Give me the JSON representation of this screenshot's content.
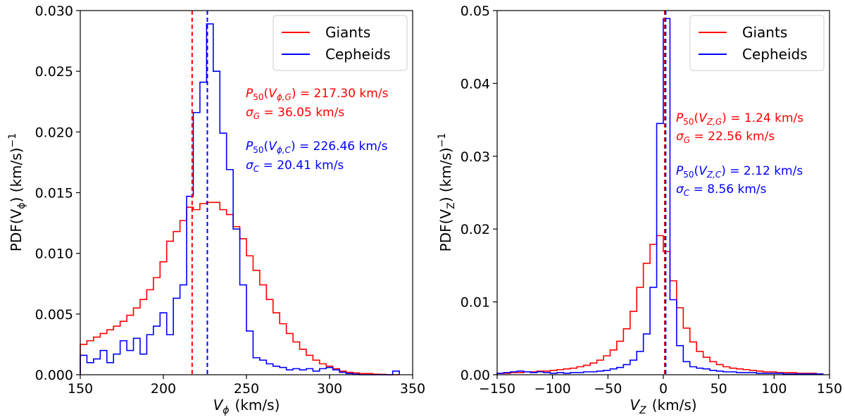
{
  "chart_data": [
    {
      "type": "histogram",
      "xlabel": "V",
      "xlabel_sub": "ϕ",
      "xlabel_unit": "(km/s)",
      "ylabel": "PDF(V",
      "ylabel_sub": "ϕ",
      "ylabel_unit": ")  (km/s)",
      "ylabel_exp": "−1",
      "xlim": [
        150,
        350
      ],
      "ylim": [
        0,
        0.03
      ],
      "xticks": [
        150,
        200,
        250,
        300,
        350
      ],
      "yticks": [
        "0.000",
        "0.005",
        "0.010",
        "0.015",
        "0.020",
        "0.025",
        "0.030"
      ],
      "ytick_values": [
        0,
        0.005,
        0.01,
        0.015,
        0.02,
        0.025,
        0.03
      ],
      "legend": [
        "Giants",
        "Cepheids"
      ],
      "legend_position": "top-right",
      "median_lines": [
        217.3,
        226.46
      ],
      "annotations": {
        "giants_p50": "P₅₀(V_ϕ,G) = 217.30 km/s",
        "giants_sigma": "σ_G = 36.05 km/s",
        "cepheids_p50": "P₅₀(V_ϕ,C) = 226.46 km/s",
        "cepheids_sigma": "σ_C = 20.41 km/s"
      },
      "series": [
        {
          "name": "Giants",
          "color": "#ff0000",
          "edges": [
            150,
            154,
            158,
            162,
            166,
            170,
            174,
            178,
            182,
            186,
            190,
            194,
            198,
            202,
            206,
            210,
            214,
            218,
            222,
            226,
            230,
            234,
            238,
            242,
            246,
            250,
            254,
            258,
            262,
            266,
            270,
            274,
            278,
            282,
            286,
            290,
            294,
            298,
            302,
            306,
            310,
            314,
            318,
            322,
            326,
            330,
            334,
            338,
            342
          ],
          "values": [
            0.0025,
            0.0028,
            0.0031,
            0.0034,
            0.0037,
            0.004,
            0.0044,
            0.0049,
            0.0055,
            0.0062,
            0.007,
            0.008,
            0.0093,
            0.011,
            0.0118,
            0.0127,
            0.0138,
            0.0136,
            0.0141,
            0.0142,
            0.0142,
            0.0136,
            0.0132,
            0.0122,
            0.0112,
            0.0098,
            0.0086,
            0.0074,
            0.0062,
            0.0051,
            0.0042,
            0.0034,
            0.0027,
            0.0021,
            0.0016,
            0.0012,
            0.0009,
            0.0007,
            0.0005,
            0.0003,
            0.0002,
            0.00015,
            0.0001,
            0.0001,
            5e-05,
            3e-05,
            0,
            0
          ]
        },
        {
          "name": "Cepheids",
          "color": "#0000ff",
          "edges": [
            150,
            154,
            158,
            162,
            166,
            170,
            174,
            178,
            182,
            186,
            190,
            194,
            198,
            202,
            206,
            210,
            214,
            218,
            222,
            226,
            230,
            234,
            238,
            242,
            246,
            250,
            254,
            258,
            262,
            266,
            270,
            274,
            278,
            282,
            286,
            290,
            294,
            298,
            302,
            306,
            310,
            314,
            318,
            322,
            326,
            330,
            334,
            338,
            342
          ],
          "values": [
            0.0016,
            0.001,
            0.0013,
            0.002,
            0.001,
            0.0017,
            0.0028,
            0.002,
            0.003,
            0.0017,
            0.0033,
            0.004,
            0.0051,
            0.0033,
            0.0063,
            0.0074,
            0.0147,
            0.0216,
            0.0241,
            0.0289,
            0.025,
            0.0199,
            0.0169,
            0.012,
            0.0074,
            0.0036,
            0.0014,
            0.0012,
            0.0009,
            0.0007,
            0.0006,
            0.0004,
            0.0005,
            0.0004,
            0.0005,
            0.0003,
            0.0005,
            0.0006,
            0.0004,
            0.0002,
            0.0001,
            5e-05,
            0,
            0,
            0,
            0,
            0,
            0.0003
          ]
        }
      ]
    },
    {
      "type": "histogram",
      "xlabel": "V",
      "xlabel_sub": "Z",
      "xlabel_unit": "(km/s)",
      "ylabel": "PDF(V",
      "ylabel_sub": "Z",
      "ylabel_unit": ")  (km/s)",
      "ylabel_exp": "−1",
      "xlim": [
        -150,
        150
      ],
      "ylim": [
        0,
        0.05
      ],
      "xticks": [
        "−150",
        "−100",
        "−50",
        "0",
        "50",
        "100",
        "150"
      ],
      "xtick_values": [
        -150,
        -100,
        -50,
        0,
        50,
        100,
        150
      ],
      "yticks": [
        "0.00",
        "0.01",
        "0.02",
        "0.03",
        "0.04",
        "0.05"
      ],
      "ytick_values": [
        0,
        0.01,
        0.02,
        0.03,
        0.04,
        0.05
      ],
      "legend": [
        "Giants",
        "Cepheids"
      ],
      "legend_position": "top-right",
      "median_lines": [
        1.24,
        2.12
      ],
      "annotations": {
        "giants_p50": "P₅₀(V_Z,G) = 1.24 km/s",
        "giants_sigma": "σ_G = 22.56 km/s",
        "cepheids_p50": "P₅₀(V_Z,C) = 2.12 km/s",
        "cepheids_sigma": "σ_C = 8.56 km/s"
      },
      "series": [
        {
          "name": "Giants",
          "color": "#ff0000",
          "edges": [
            -150,
            -144,
            -138,
            -132,
            -126,
            -120,
            -114,
            -108,
            -102,
            -96,
            -90,
            -84,
            -78,
            -72,
            -66,
            -60,
            -54,
            -48,
            -42,
            -36,
            -30,
            -24,
            -18,
            -12,
            -6,
            0,
            6,
            12,
            18,
            24,
            30,
            36,
            42,
            48,
            54,
            60,
            66,
            72,
            78,
            84,
            90,
            96,
            102,
            108,
            114,
            120,
            126,
            132,
            138,
            144
          ],
          "values": [
            0.0002,
            0.0002,
            0.0003,
            0.0003,
            0.0004,
            0.0004,
            0.0005,
            0.0005,
            0.0006,
            0.0007,
            0.0008,
            0.0009,
            0.0011,
            0.0013,
            0.0016,
            0.002,
            0.0026,
            0.0034,
            0.0046,
            0.0063,
            0.0087,
            0.012,
            0.0153,
            0.0179,
            0.0191,
            0.0169,
            0.0129,
            0.0092,
            0.0064,
            0.0045,
            0.0032,
            0.0024,
            0.0018,
            0.0014,
            0.0011,
            0.0009,
            0.0008,
            0.0007,
            0.0006,
            0.0005,
            0.0004,
            0.0004,
            0.0003,
            0.0003,
            0.0003,
            0.0002,
            0.0002,
            0.0002,
            0.0001
          ]
        },
        {
          "name": "Cepheids",
          "color": "#0000ff",
          "edges": [
            -150,
            -144,
            -138,
            -132,
            -126,
            -120,
            -114,
            -108,
            -102,
            -96,
            -90,
            -84,
            -78,
            -72,
            -66,
            -60,
            -54,
            -48,
            -42,
            -36,
            -30,
            -24,
            -18,
            -12,
            -6,
            0,
            6,
            12,
            18,
            24,
            30,
            36,
            42,
            48,
            54,
            60,
            66,
            72,
            78,
            84,
            90,
            96,
            102,
            108,
            114,
            120,
            126,
            132,
            138,
            144
          ],
          "values": [
            0.0002,
            0.0003,
            0.0004,
            0.0005,
            0.0004,
            0.0003,
            0.0004,
            0.0003,
            0.0002,
            0.0003,
            0.0002,
            0.0003,
            0.0003,
            0.0004,
            0.0004,
            0.0005,
            0.0006,
            0.0008,
            0.001,
            0.0014,
            0.002,
            0.0032,
            0.0056,
            0.012,
            0.0345,
            0.0489,
            0.0103,
            0.004,
            0.0018,
            0.0011,
            0.0009,
            0.0008,
            0.0006,
            0.0005,
            0.0004,
            0.0004,
            0.0003,
            0.0003,
            0.0003,
            0.0002,
            0.0002,
            0.0002,
            0.0002,
            0.0001,
            0.0001,
            0.0001,
            0.0001,
            0.0001,
            0.0001
          ]
        }
      ]
    }
  ]
}
